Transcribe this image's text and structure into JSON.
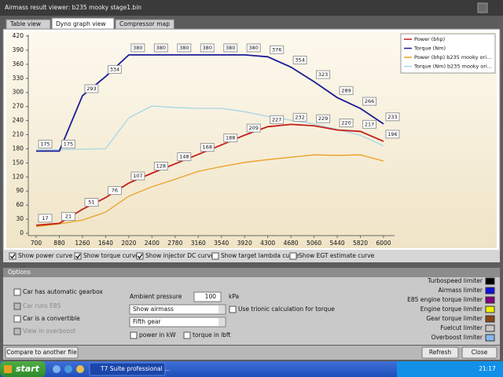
{
  "window": {
    "title": "Airmass result viewer: b235 mooky stage1.bin"
  },
  "tabs": [
    "Table view",
    "Dyno graph view",
    "Compressor map"
  ],
  "chart_data": {
    "type": "line",
    "categories": [
      "700",
      "880",
      "1260",
      "1640",
      "2020",
      "2400",
      "2780",
      "3160",
      "3540",
      "3920",
      "4300",
      "4680",
      "5060",
      "5440",
      "5820",
      "6000"
    ],
    "ylim": [
      0,
      420
    ],
    "yticks": [
      0,
      30,
      60,
      90,
      120,
      150,
      180,
      210,
      240,
      270,
      300,
      330,
      360,
      390,
      420
    ],
    "series": [
      {
        "name": "Power (bhp)",
        "color": "#c41e1a",
        "data_labels": true,
        "values": [
          17,
          21,
          51,
          76,
          107,
          128,
          148,
          168,
          188,
          209,
          227,
          232,
          229,
          220,
          217,
          196
        ]
      },
      {
        "name": "Torque (Nm)",
        "color": "#1c1c96",
        "data_labels": true,
        "values": [
          175,
          175,
          293,
          334,
          380,
          380,
          380,
          380,
          380,
          380,
          376,
          354,
          323,
          289,
          266,
          233
        ]
      },
      {
        "name": "Power (bhp) b235 mooky ori...",
        "color": "#eaa024",
        "data_labels": false,
        "values": [
          14,
          20,
          28,
          45,
          79,
          99,
          115,
          132,
          142,
          151,
          157,
          162,
          167,
          166,
          167,
          154
        ]
      },
      {
        "name": "Torque (Nm) b235 mooky ori...",
        "color": "#a6d6e6",
        "data_labels": false,
        "values": [
          178,
          178,
          179,
          180,
          246,
          271,
          268,
          266,
          266,
          259,
          249,
          241,
          233,
          221,
          209,
          186
        ]
      }
    ]
  },
  "curve_options": [
    {
      "label": "Show power curve",
      "checked": true
    },
    {
      "label": "Show torque curve",
      "checked": true
    },
    {
      "label": "Show injector DC curve",
      "checked": true
    },
    {
      "label": "Show target lambda curve",
      "checked": false
    },
    {
      "label": "Show EGT estimate curve",
      "checked": false
    }
  ],
  "options": {
    "title": "Options",
    "checkboxes": [
      {
        "label": "Car has automatic gearbox",
        "checked": false,
        "enabled": true
      },
      {
        "label": "Car runs E85",
        "checked": false,
        "enabled": false
      },
      {
        "label": "Car is a convertible",
        "checked": false,
        "enabled": true
      },
      {
        "label": "View in overboost",
        "checked": false,
        "enabled": false
      }
    ],
    "ambient_pressure": {
      "label": "Ambient pressure",
      "value": 100,
      "unit": "kPa"
    },
    "selects": [
      "Show airmass",
      "Fifth gear"
    ],
    "trionic": {
      "label": "Use trionic calculation for torque",
      "checked": false
    },
    "units": [
      {
        "label": "power in kW",
        "checked": false
      },
      {
        "label": "torque in lbft",
        "checked": false
      }
    ],
    "limiters": [
      {
        "name": "Turbospeed limiter",
        "color": "#000000"
      },
      {
        "name": "Airmass limiter",
        "color": "#1010e0"
      },
      {
        "name": "E85 engine torque limiter",
        "color": "#800080"
      },
      {
        "name": "Engine torque limiter",
        "color": "#f0f000"
      },
      {
        "name": "Gear torque limiter",
        "color": "#8b4513"
      },
      {
        "name": "Fuelcut limiter",
        "color": "#c8c8c8"
      },
      {
        "name": "Overboost limiter",
        "color": "#87b8f0"
      }
    ]
  },
  "buttons": {
    "compare": "Compare to another file",
    "refresh": "Refresh",
    "close": "Close"
  },
  "taskbar": {
    "start": "start",
    "task": "T7 Suite professional ...",
    "clock": "21:17"
  }
}
